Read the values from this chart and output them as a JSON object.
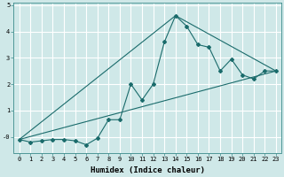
{
  "xlabel": "Humidex (Indice chaleur)",
  "background_color": "#cfe8e8",
  "grid_color": "#b8d8d8",
  "line_color": "#1a6b6b",
  "marker": "D",
  "markersize": 2.0,
  "linewidth": 0.8,
  "series1_x": [
    0,
    1,
    2,
    3,
    4,
    5,
    6,
    7,
    8,
    9,
    10,
    11,
    12,
    13,
    14,
    15,
    16,
    17,
    18,
    19,
    20,
    21,
    22,
    23
  ],
  "series1_y": [
    -0.1,
    -0.2,
    -0.15,
    -0.1,
    -0.1,
    -0.15,
    -0.3,
    -0.05,
    0.65,
    0.65,
    2.0,
    1.4,
    2.0,
    3.6,
    4.6,
    4.2,
    3.5,
    3.4,
    2.5,
    2.95,
    2.35,
    2.2,
    2.5,
    2.5
  ],
  "series2_x": [
    0,
    23
  ],
  "series2_y": [
    -0.1,
    2.5
  ],
  "series3_x": [
    0,
    14,
    23
  ],
  "series3_y": [
    -0.1,
    4.6,
    2.5
  ],
  "xlim": [
    -0.5,
    23.5
  ],
  "ylim": [
    -0.6,
    5.1
  ],
  "xticks": [
    0,
    1,
    2,
    3,
    4,
    5,
    6,
    7,
    8,
    9,
    10,
    11,
    12,
    13,
    14,
    15,
    16,
    17,
    18,
    19,
    20,
    21,
    22,
    23
  ],
  "yticks": [
    0,
    1,
    2,
    3,
    4,
    5
  ],
  "ytick_labels": [
    "-0",
    "1",
    "2",
    "3",
    "4",
    "5"
  ],
  "xlabel_fontsize": 6.5,
  "tick_fontsize": 5.0
}
